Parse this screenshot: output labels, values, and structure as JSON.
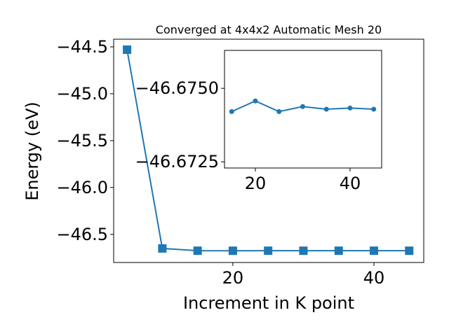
{
  "chart_data": [
    {
      "type": "line",
      "title": "Converged at 4x4x2 Automatic Mesh 20",
      "x_label": "Increment in K point",
      "y_label": "Energy (eV)",
      "x": [
        5,
        10,
        15,
        20,
        25,
        30,
        35,
        40,
        45
      ],
      "values": [
        -44.53,
        -46.65,
        -46.6742,
        -46.6746,
        -46.6742,
        -46.6744,
        -46.6743,
        -46.6743,
        -46.6743
      ],
      "color": "#1f77b4",
      "marker": "square",
      "xlim": [
        3.1,
        47.06
      ],
      "xticks": [
        20,
        40
      ],
      "ylim": [
        -46.8,
        -44.418
      ],
      "yticks": [
        {
          "value": -46.5,
          "label": "−46.5"
        },
        {
          "value": -46.0,
          "label": "−46.0"
        },
        {
          "value": -45.5,
          "label": "−45.5"
        },
        {
          "value": -45.0,
          "label": "−45.0"
        },
        {
          "value": -44.5,
          "label": "−44.5"
        }
      ]
    },
    {
      "type": "line",
      "x": [
        15,
        20,
        25,
        30,
        35,
        40,
        45
      ],
      "values": [
        -46.67421,
        -46.67457,
        -46.67421,
        -46.67438,
        -46.67429,
        -46.67433,
        -46.67429
      ],
      "color": "#1f77b4",
      "marker": "circle",
      "xlim": [
        13.48,
        46.67
      ],
      "xticks": [
        20,
        40
      ],
      "ylim": [
        -46.67229,
        -46.67629
      ],
      "yticks": [
        {
          "value": -46.675,
          "label": "−46.6750"
        },
        {
          "value": -46.6725,
          "label": "−46.6725"
        }
      ]
    }
  ]
}
